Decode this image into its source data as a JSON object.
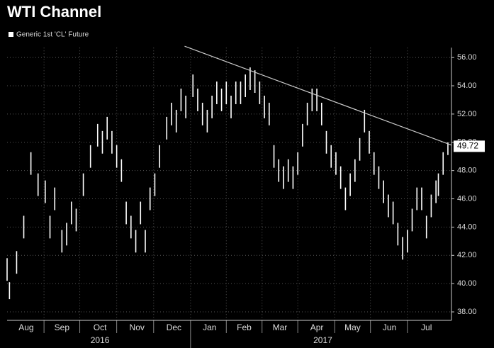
{
  "chart_data": {
    "type": "range-bar",
    "title": "WTI Channel",
    "series": [
      {
        "name": "Generic 1st 'CL' Future",
        "color": "#ffffff",
        "x": [
          0,
          2,
          8,
          14,
          20,
          26,
          32,
          36,
          40,
          46,
          50,
          54,
          58,
          64,
          70,
          76,
          80,
          84,
          88,
          92,
          96,
          100,
          104,
          108,
          112,
          116,
          120,
          124,
          128,
          134,
          138,
          142,
          146,
          150,
          156,
          160,
          164,
          168,
          172,
          176,
          180,
          184,
          188,
          192,
          196,
          200,
          204,
          208,
          212,
          216,
          220,
          224,
          228,
          232,
          236,
          240,
          244,
          248,
          252,
          256,
          260,
          264,
          268,
          272,
          276,
          280,
          284,
          288,
          292,
          296,
          300,
          304,
          308,
          312,
          316,
          320,
          324,
          328,
          332,
          336,
          340,
          344,
          348,
          352,
          356,
          360,
          362,
          366,
          370
        ],
        "high": [
          41.8,
          40.1,
          42.3,
          44.8,
          49.3,
          47.8,
          47.3,
          44.8,
          46.8,
          43.8,
          44.3,
          45.8,
          45.3,
          47.8,
          49.8,
          51.3,
          50.8,
          51.8,
          50.8,
          49.8,
          48.8,
          45.8,
          44.8,
          43.8,
          45.8,
          43.8,
          46.8,
          47.8,
          49.8,
          51.8,
          52.8,
          52.3,
          53.8,
          53.3,
          54.8,
          53.8,
          52.8,
          52.3,
          53.3,
          54.3,
          53.8,
          54.3,
          53.3,
          54.3,
          54.3,
          54.8,
          55.3,
          55.1,
          54.3,
          53.3,
          52.8,
          49.8,
          48.8,
          48.3,
          48.8,
          48.3,
          49.3,
          51.3,
          52.8,
          53.8,
          53.8,
          52.8,
          50.8,
          49.8,
          49.3,
          48.3,
          46.8,
          47.8,
          48.8,
          50.3,
          52.3,
          50.8,
          49.3,
          48.3,
          47.3,
          46.3,
          45.8,
          44.3,
          43.3,
          43.8,
          45.3,
          46.8,
          46.8,
          44.8,
          46.3,
          47.3,
          47.8,
          49.3,
          50.0
        ],
        "low": [
          40.2,
          38.9,
          40.7,
          43.2,
          47.7,
          46.2,
          45.7,
          43.2,
          45.2,
          42.2,
          42.7,
          44.2,
          43.7,
          46.2,
          48.2,
          49.7,
          49.2,
          50.2,
          49.2,
          48.2,
          47.2,
          44.2,
          43.2,
          42.2,
          44.2,
          42.2,
          45.2,
          46.2,
          48.2,
          50.2,
          51.2,
          50.7,
          52.2,
          51.7,
          53.2,
          52.2,
          51.2,
          50.7,
          51.7,
          52.7,
          52.2,
          52.7,
          51.7,
          52.7,
          52.7,
          53.2,
          53.7,
          53.5,
          52.7,
          51.7,
          51.2,
          48.2,
          47.2,
          46.7,
          47.2,
          46.7,
          47.7,
          49.7,
          51.2,
          52.2,
          52.2,
          51.2,
          49.2,
          48.2,
          47.7,
          46.7,
          45.2,
          46.2,
          47.2,
          48.7,
          50.7,
          49.2,
          47.7,
          46.7,
          45.7,
          44.7,
          44.2,
          42.7,
          41.7,
          42.2,
          43.7,
          45.2,
          45.2,
          43.2,
          44.7,
          45.7,
          46.2,
          47.7,
          49.1
        ]
      }
    ],
    "last_price": 49.72,
    "trendline": {
      "x": [
        149,
        373
      ],
      "y": [
        56.8,
        49.8
      ]
    },
    "xlim": [
      0,
      373
    ],
    "ylim": [
      37.4,
      56.7
    ],
    "yticks": [
      {
        "value": 38,
        "label": "38.00"
      },
      {
        "value": 40,
        "label": "40.00"
      },
      {
        "value": 42,
        "label": "42.00"
      },
      {
        "value": 44,
        "label": "44.00"
      },
      {
        "value": 46,
        "label": "46.00"
      },
      {
        "value": 48,
        "label": "48.00"
      },
      {
        "value": 50,
        "label": "50.00"
      },
      {
        "value": 52,
        "label": "52.00"
      },
      {
        "value": 54,
        "label": "54.00"
      },
      {
        "value": 56,
        "label": "56.00"
      }
    ],
    "xticks": [
      {
        "value": 16,
        "label": "Aug"
      },
      {
        "value": 46,
        "label": "Sep"
      },
      {
        "value": 78,
        "label": "Oct"
      },
      {
        "value": 109,
        "label": "Nov"
      },
      {
        "value": 140,
        "label": "Dec"
      },
      {
        "value": 170,
        "label": "Jan"
      },
      {
        "value": 199,
        "label": "Feb"
      },
      {
        "value": 229,
        "label": "Mar"
      },
      {
        "value": 260,
        "label": "Apr"
      },
      {
        "value": 290,
        "label": "May"
      },
      {
        "value": 321,
        "label": "Jun"
      },
      {
        "value": 352,
        "label": "Jul"
      }
    ],
    "xgrid": [
      31,
      61,
      92,
      123,
      154,
      184,
      214,
      244,
      275,
      305,
      336
    ],
    "year_labels": [
      {
        "value": 78,
        "label": "2016"
      },
      {
        "value": 265,
        "label": "2017"
      }
    ],
    "year_divider": 154,
    "grid": true
  }
}
